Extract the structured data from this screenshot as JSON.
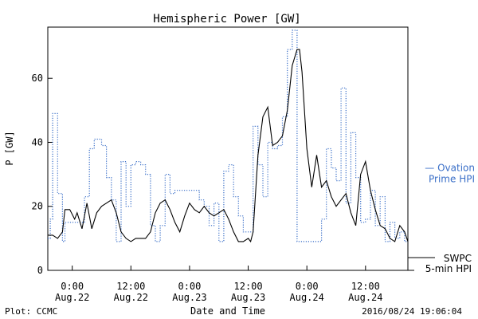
{
  "chart_data": {
    "type": "line",
    "title": "Hemispheric Power [GW]",
    "xlabel": "Date and Time",
    "ylabel": "P [GW]",
    "ylim": [
      0,
      76
    ],
    "yticks": [
      0,
      20,
      40,
      60
    ],
    "xlim": [
      "2016-08-21T19:00",
      "2016-08-24T20:40"
    ],
    "xticks": [
      {
        "x": "2016-08-22T00:00",
        "time": "0:00",
        "date": "Aug.22"
      },
      {
        "x": "2016-08-22T12:00",
        "time": "12:00",
        "date": "Aug.22"
      },
      {
        "x": "2016-08-23T00:00",
        "time": "0:00",
        "date": "Aug.23"
      },
      {
        "x": "2016-08-23T12:00",
        "time": "12:00",
        "date": "Aug.23"
      },
      {
        "x": "2016-08-24T00:00",
        "time": "0:00",
        "date": "Aug.24"
      },
      {
        "x": "2016-08-24T12:00",
        "time": "12:00",
        "date": "Aug.24"
      }
    ],
    "series": [
      {
        "name": "SWPC 5-min HPI",
        "label_lines": [
          "SWPC",
          "5-min HPI"
        ],
        "color": "#000000",
        "style": "solid",
        "x": [
          "2016-08-21T19:00",
          "2016-08-21T20:00",
          "2016-08-21T21:00",
          "2016-08-21T22:00",
          "2016-08-21T22:30",
          "2016-08-21T23:30",
          "2016-08-22T00:30",
          "2016-08-22T01:00",
          "2016-08-22T02:00",
          "2016-08-22T03:00",
          "2016-08-22T03:30",
          "2016-08-22T04:00",
          "2016-08-22T05:00",
          "2016-08-22T06:00",
          "2016-08-22T07:00",
          "2016-08-22T08:00",
          "2016-08-22T09:00",
          "2016-08-22T10:00",
          "2016-08-22T11:00",
          "2016-08-22T12:00",
          "2016-08-22T13:00",
          "2016-08-22T14:00",
          "2016-08-22T15:00",
          "2016-08-22T16:00",
          "2016-08-22T17:00",
          "2016-08-22T18:00",
          "2016-08-22T19:00",
          "2016-08-22T20:00",
          "2016-08-22T21:00",
          "2016-08-22T22:00",
          "2016-08-22T23:00",
          "2016-08-23T00:00",
          "2016-08-23T01:00",
          "2016-08-23T02:00",
          "2016-08-23T03:00",
          "2016-08-23T04:00",
          "2016-08-23T05:00",
          "2016-08-23T06:00",
          "2016-08-23T07:00",
          "2016-08-23T08:00",
          "2016-08-23T09:00",
          "2016-08-23T10:00",
          "2016-08-23T11:00",
          "2016-08-23T12:00",
          "2016-08-23T12:30",
          "2016-08-23T13:00",
          "2016-08-23T14:00",
          "2016-08-23T15:00",
          "2016-08-23T16:00",
          "2016-08-23T17:00",
          "2016-08-23T18:00",
          "2016-08-23T19:00",
          "2016-08-23T20:00",
          "2016-08-23T21:00",
          "2016-08-23T22:00",
          "2016-08-23T23:00",
          "2016-08-24T00:00",
          "2016-08-24T01:00",
          "2016-08-24T02:00",
          "2016-08-24T03:00",
          "2016-08-24T04:00",
          "2016-08-24T05:00",
          "2016-08-24T06:00",
          "2016-08-24T07:00",
          "2016-08-24T08:00",
          "2016-08-24T09:00",
          "2016-08-24T10:00",
          "2016-08-24T11:00",
          "2016-08-24T12:00",
          "2016-08-24T13:00",
          "2016-08-24T14:00",
          "2016-08-24T15:00",
          "2016-08-24T16:00",
          "2016-08-24T17:00",
          "2016-08-24T18:00",
          "2016-08-24T19:00",
          "2016-08-24T20:00",
          "2016-08-24T20:40"
        ],
        "y": [
          11,
          11,
          10,
          12,
          19,
          19,
          16,
          18,
          13,
          21,
          17,
          13,
          18,
          20,
          21,
          22,
          18,
          12,
          10,
          9,
          10,
          10,
          10,
          12,
          18,
          21,
          22,
          19,
          15,
          12,
          17,
          21,
          19,
          18,
          20,
          18,
          17,
          18,
          19,
          16,
          12,
          9,
          9,
          10,
          9,
          12,
          36,
          48,
          51,
          39,
          40,
          42,
          50,
          64,
          69,
          62,
          38,
          26,
          36,
          26,
          28,
          23,
          20,
          22,
          24,
          18,
          14,
          30,
          34,
          25,
          19,
          14,
          13,
          10,
          9,
          14,
          12,
          9
        ],
        "peak": {
          "x": "2016-08-23T22:30",
          "y": 69
        }
      },
      {
        "name": "Ovation Prime HPI",
        "label_lines": [
          "— Ovation",
          "Prime HPI"
        ],
        "color": "#3a6fc8",
        "style": "dotted-step",
        "x": [
          "2016-08-21T19:00",
          "2016-08-21T19:30",
          "2016-08-21T20:00",
          "2016-08-21T21:00",
          "2016-08-21T22:00",
          "2016-08-21T22:30",
          "2016-08-21T23:30",
          "2016-08-22T00:30",
          "2016-08-22T01:30",
          "2016-08-22T02:30",
          "2016-08-22T03:30",
          "2016-08-22T04:30",
          "2016-08-22T06:00",
          "2016-08-22T07:00",
          "2016-08-22T08:00",
          "2016-08-22T09:00",
          "2016-08-22T10:00",
          "2016-08-22T11:00",
          "2016-08-22T12:00",
          "2016-08-22T13:00",
          "2016-08-22T14:00",
          "2016-08-22T15:00",
          "2016-08-22T16:00",
          "2016-08-22T17:00",
          "2016-08-22T18:00",
          "2016-08-22T19:00",
          "2016-08-22T20:00",
          "2016-08-22T21:00",
          "2016-08-22T22:00",
          "2016-08-22T23:00",
          "2016-08-23T00:00",
          "2016-08-23T01:00",
          "2016-08-23T02:00",
          "2016-08-23T03:00",
          "2016-08-23T04:00",
          "2016-08-23T05:00",
          "2016-08-23T06:00",
          "2016-08-23T07:00",
          "2016-08-23T08:00",
          "2016-08-23T09:00",
          "2016-08-23T10:00",
          "2016-08-23T11:00",
          "2016-08-23T12:00",
          "2016-08-23T13:00",
          "2016-08-23T14:00",
          "2016-08-23T15:00",
          "2016-08-23T16:00",
          "2016-08-23T17:00",
          "2016-08-23T18:00",
          "2016-08-23T19:00",
          "2016-08-23T20:00",
          "2016-08-23T21:00",
          "2016-08-23T22:00",
          "2016-08-23T23:00",
          "2016-08-24T00:00",
          "2016-08-24T01:00",
          "2016-08-24T02:00",
          "2016-08-24T03:00",
          "2016-08-24T04:00",
          "2016-08-24T05:00",
          "2016-08-24T06:00",
          "2016-08-24T07:00",
          "2016-08-24T08:00",
          "2016-08-24T09:00",
          "2016-08-24T10:00",
          "2016-08-24T11:00",
          "2016-08-24T12:00",
          "2016-08-24T13:00",
          "2016-08-24T14:00",
          "2016-08-24T15:00",
          "2016-08-24T16:00",
          "2016-08-24T17:00",
          "2016-08-24T18:00",
          "2016-08-24T19:00",
          "2016-08-24T20:00"
        ],
        "y": [
          10,
          16,
          49,
          24,
          9,
          15,
          15,
          15,
          15,
          23,
          38,
          41,
          39,
          29,
          22,
          9,
          34,
          20,
          33,
          34,
          33,
          30,
          14,
          9,
          14,
          30,
          24,
          25,
          25,
          25,
          25,
          25,
          22,
          20,
          14,
          21,
          9,
          31,
          33,
          23,
          17,
          12,
          12,
          45,
          33,
          23,
          40,
          38,
          39,
          48,
          69,
          75,
          9,
          9,
          9,
          9,
          9,
          16,
          38,
          32,
          28,
          57,
          21,
          43,
          29,
          15,
          16,
          25,
          14,
          23,
          9,
          15,
          10,
          12,
          9
        ]
      }
    ]
  },
  "footer": {
    "left": "Plot: CCMC",
    "right": "2016/08/24 19:06:04"
  }
}
